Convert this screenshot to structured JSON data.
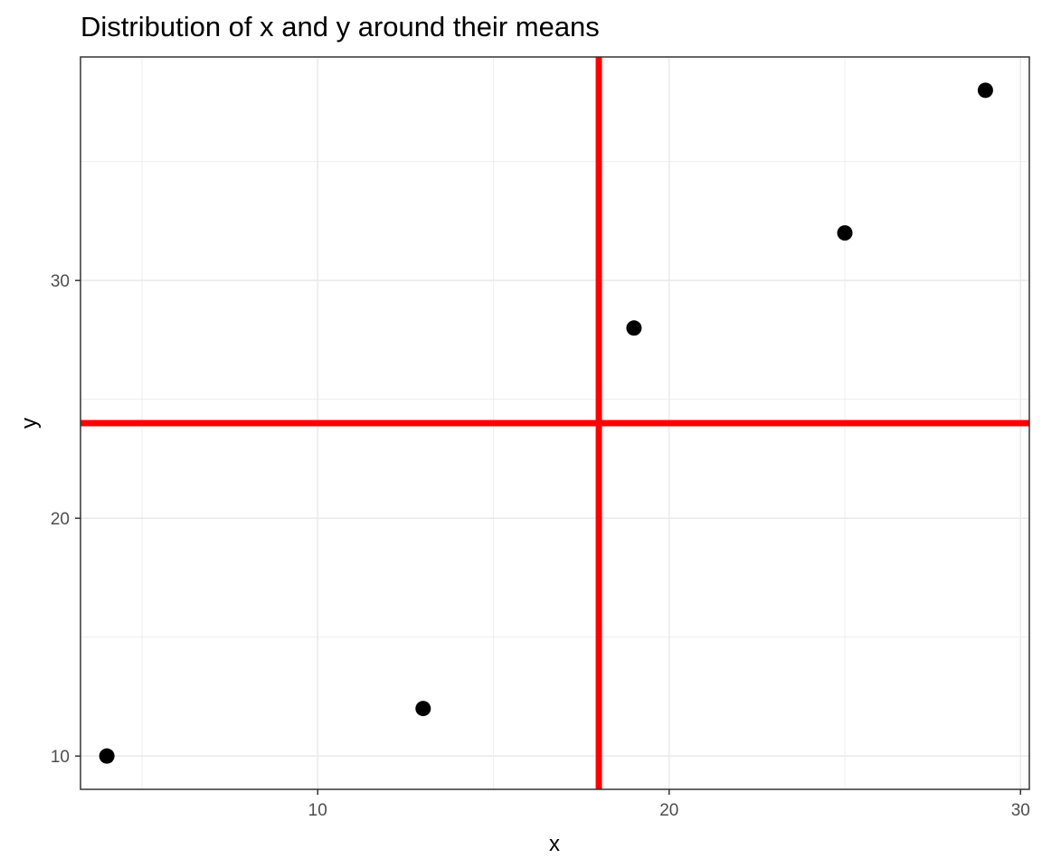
{
  "chart_data": {
    "type": "scatter",
    "title": "Distribution of x and y around their means",
    "xlabel": "x",
    "ylabel": "y",
    "xlim": [
      3.25,
      30.25
    ],
    "ylim": [
      8.6,
      39.4
    ],
    "x_ticks": [
      10,
      20,
      30
    ],
    "y_ticks": [
      10,
      20,
      30
    ],
    "x_minor_ticks": [
      5,
      15,
      25
    ],
    "y_minor_ticks": [
      15,
      25,
      35
    ],
    "grid": true,
    "legend": "none",
    "points": [
      {
        "x": 4,
        "y": 10
      },
      {
        "x": 13,
        "y": 12
      },
      {
        "x": 19,
        "y": 28
      },
      {
        "x": 25,
        "y": 32
      },
      {
        "x": 29,
        "y": 38
      }
    ],
    "reference_lines": [
      {
        "orientation": "vertical",
        "value": 18
      },
      {
        "orientation": "horizontal",
        "value": 24
      }
    ],
    "colors": {
      "points": "#000000",
      "reference_lines": "#ff0000",
      "grid": "#ebebeb",
      "panel_border": "#333333",
      "tick_label": "#4d4d4d"
    }
  }
}
